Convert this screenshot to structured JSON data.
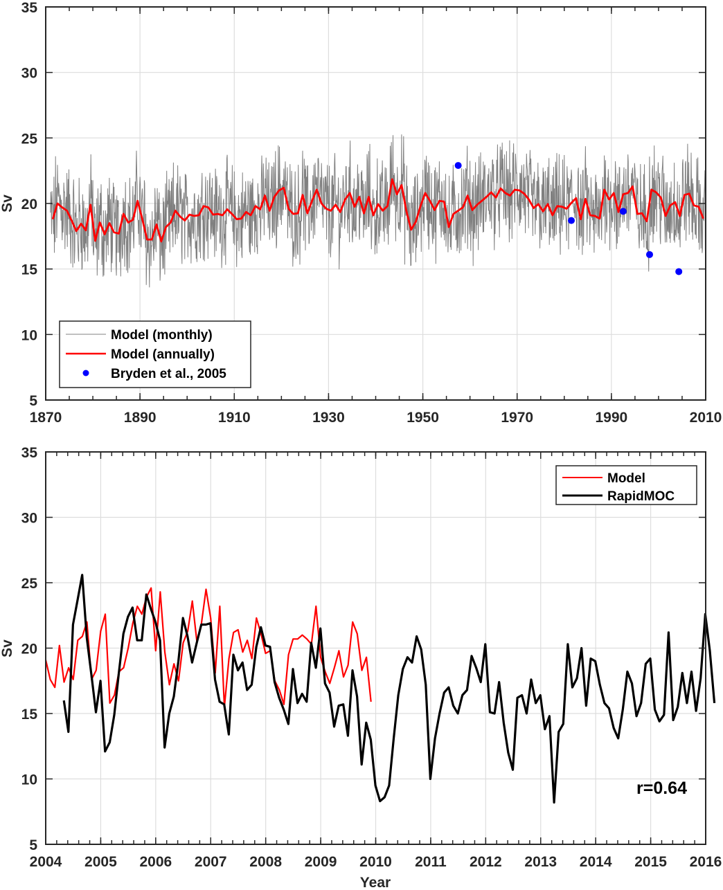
{
  "chart_data": [
    {
      "type": "line",
      "title": "",
      "xlabel": "",
      "ylabel": "Sv",
      "xlim": [
        1870,
        2010
      ],
      "ylim": [
        5,
        35
      ],
      "xticks": [
        1870,
        1890,
        1910,
        1930,
        1950,
        1970,
        1990,
        2010
      ],
      "xtick_labels": [
        "1870",
        "1890",
        "1910",
        "1930",
        "1950",
        "1970",
        "1990",
        "2010"
      ],
      "yticks": [
        5,
        10,
        15,
        20,
        25,
        30,
        35
      ],
      "ytick_labels": [
        "5",
        "10",
        "15",
        "20",
        "25",
        "30",
        "35"
      ],
      "grid": true,
      "legend": {
        "position": "bottom-left",
        "entries": [
          {
            "label": "Model (monthly)",
            "color": "#808080",
            "style": "line"
          },
          {
            "label": "Model (annually)",
            "color": "#ff0000",
            "style": "line"
          },
          {
            "label": "Bryden et al.,  2005",
            "color": "#0000ff",
            "style": "marker"
          }
        ]
      },
      "series": [
        {
          "name": "Model (monthly)",
          "color": "#808080",
          "kind": "monthly-noise",
          "start_year": 1871,
          "end_year": 2010,
          "mean": 19.6,
          "range": [
            12.5,
            26.5
          ]
        },
        {
          "name": "Model (annually)",
          "color": "#ff0000",
          "start_year": 1871.5,
          "step": 1,
          "values": [
            18.8,
            20.0,
            19.7,
            19.45,
            18.7,
            17.9,
            18.45,
            17.95,
            19.9,
            17.15,
            18.55,
            17.65,
            18.5,
            17.8,
            17.7,
            19.2,
            18.55,
            18.75,
            20.2,
            18.8,
            17.25,
            17.25,
            18.4,
            17.1,
            18.2,
            18.55,
            19.45,
            19.0,
            18.7,
            19.15,
            19.05,
            19.1,
            19.8,
            19.7,
            19.15,
            19.2,
            19.1,
            19.55,
            19.2,
            18.8,
            18.85,
            19.35,
            19.1,
            19.8,
            19.55,
            20.6,
            19.45,
            20.5,
            21.0,
            21.2,
            19.6,
            19.2,
            19.25,
            20.65,
            19.25,
            20.2,
            21.05,
            20.0,
            19.6,
            19.45,
            19.9,
            19.35,
            20.3,
            20.8,
            19.75,
            20.5,
            19.25,
            20.5,
            19.1,
            19.95,
            19.45,
            19.8,
            21.85,
            20.7,
            21.4,
            19.45,
            18.0,
            18.6,
            19.8,
            20.8,
            20.2,
            19.5,
            20.2,
            20.15,
            18.2,
            19.2,
            19.45,
            19.7,
            20.6,
            19.5,
            19.9,
            20.2,
            20.5,
            20.85,
            20.45,
            21.15,
            20.8,
            20.6,
            21.05,
            21.0,
            20.75,
            20.3,
            19.65,
            19.95,
            19.4,
            19.95,
            19.1,
            19.8,
            19.75,
            19.6,
            20.05,
            20.4,
            18.8,
            20.35,
            19.1,
            19.05,
            18.85,
            21.05,
            20.3,
            20.8,
            19.35,
            20.7,
            20.8,
            21.3,
            19.2,
            19.25,
            18.65,
            21.05,
            20.85,
            20.45,
            19.05,
            19.85,
            20.1,
            19.05,
            20.65,
            20.75,
            19.85,
            19.75,
            18.85
          ]
        },
        {
          "name": "Bryden et al.,  2005",
          "color": "#0000ff",
          "kind": "points",
          "x": [
            1957.5,
            1981.5,
            1992.5,
            1998.1,
            2004.3
          ],
          "y": [
            22.9,
            18.7,
            19.4,
            16.1,
            14.8
          ]
        }
      ]
    },
    {
      "type": "line",
      "title": "",
      "xlabel": "Year",
      "ylabel": "Sv",
      "xlim": [
        2004,
        2016
      ],
      "ylim": [
        5,
        35
      ],
      "xticks": [
        2004,
        2005,
        2006,
        2007,
        2008,
        2009,
        2010,
        2011,
        2012,
        2013,
        2014,
        2015,
        2016
      ],
      "xtick_labels": [
        "2004",
        "2005",
        "2006",
        "2007",
        "2008",
        "2009",
        "2010",
        "2011",
        "2012",
        "2013",
        "2014",
        "2015",
        "2016"
      ],
      "yticks": [
        5,
        10,
        15,
        20,
        25,
        30,
        35
      ],
      "ytick_labels": [
        "5",
        "10",
        "15",
        "20",
        "25",
        "30",
        "35"
      ],
      "grid": true,
      "annotation": "r=0.64",
      "legend": {
        "position": "top-right",
        "entries": [
          {
            "label": "Model",
            "color": "#ff0000"
          },
          {
            "label": "RapidMOC",
            "color": "#000000"
          }
        ]
      },
      "series": [
        {
          "name": "Model",
          "color": "#ff0000",
          "start_year": 2004.0,
          "step": 0.0833,
          "values": [
            19.1,
            17.6,
            17.0,
            20.2,
            17.4,
            18.5,
            17.6,
            20.6,
            20.9,
            22.0,
            17.6,
            18.3,
            21.3,
            22.6,
            15.8,
            16.4,
            18.2,
            18.5,
            20.0,
            21.9,
            23.2,
            22.6,
            23.9,
            24.6,
            19.8,
            24.3,
            19.7,
            17.2,
            18.8,
            17.5,
            20.4,
            21.3,
            23.6,
            20.5,
            21.9,
            24.5,
            22.3,
            18.1,
            23.2,
            15.5,
            19.2,
            21.2,
            21.4,
            19.7,
            20.6,
            19.2,
            22.3,
            21.1,
            19.6,
            19.8,
            17.5,
            16.8,
            15.7,
            19.5,
            20.7,
            20.7,
            21.0,
            20.7,
            20.3,
            23.2,
            19.3,
            18.2,
            17.3,
            18.5,
            19.8,
            17.8,
            18.7,
            22.0,
            21.1,
            18.3,
            19.3,
            15.9
          ]
        },
        {
          "name": "RapidMOC",
          "color": "#000000",
          "start_year": 2004.33,
          "step": 0.0833,
          "values": [
            16.0,
            13.6,
            21.8,
            23.7,
            25.6,
            20.8,
            18.0,
            15.1,
            17.5,
            12.1,
            12.8,
            14.9,
            18.1,
            21.1,
            22.4,
            23.1,
            20.6,
            20.6,
            24.1,
            23.0,
            22.0,
            20.6,
            12.4,
            15.0,
            16.3,
            19.0,
            22.3,
            20.9,
            18.9,
            20.4,
            21.8,
            21.8,
            21.9,
            17.6,
            15.9,
            15.7,
            13.4,
            19.5,
            18.3,
            18.9,
            16.8,
            17.2,
            20.1,
            21.6,
            20.2,
            20.1,
            17.4,
            16.2,
            15.3,
            14.2,
            18.4,
            15.8,
            16.5,
            15.9,
            20.4,
            18.5,
            21.5,
            17.3,
            16.6,
            14.0,
            15.6,
            15.7,
            13.3,
            18.3,
            16.3,
            11.1,
            14.3,
            13.0,
            9.5,
            8.3,
            8.6,
            9.5,
            13.1,
            16.4,
            18.4,
            19.3,
            18.9,
            20.9,
            19.9,
            17.2,
            10.0,
            13.1,
            15.0,
            16.6,
            17.0,
            15.6,
            15.0,
            16.4,
            16.8,
            19.4,
            18.5,
            17.4,
            20.3,
            15.1,
            15.0,
            17.4,
            14.3,
            12.0,
            10.7,
            16.2,
            16.4,
            15.0,
            17.6,
            15.8,
            16.4,
            13.8,
            14.8,
            8.2,
            13.6,
            14.2,
            20.3,
            17.0,
            17.7,
            20.0,
            15.6,
            19.2,
            19.0,
            17.2,
            15.8,
            15.4,
            13.9,
            13.1,
            15.3,
            18.2,
            17.3,
            14.8,
            15.8,
            18.8,
            19.2,
            15.3,
            14.4,
            14.9,
            21.2,
            14.5,
            15.5,
            18.1,
            15.8,
            18.2,
            15.2,
            17.7,
            22.6,
            19.8,
            15.8
          ]
        }
      ]
    }
  ]
}
